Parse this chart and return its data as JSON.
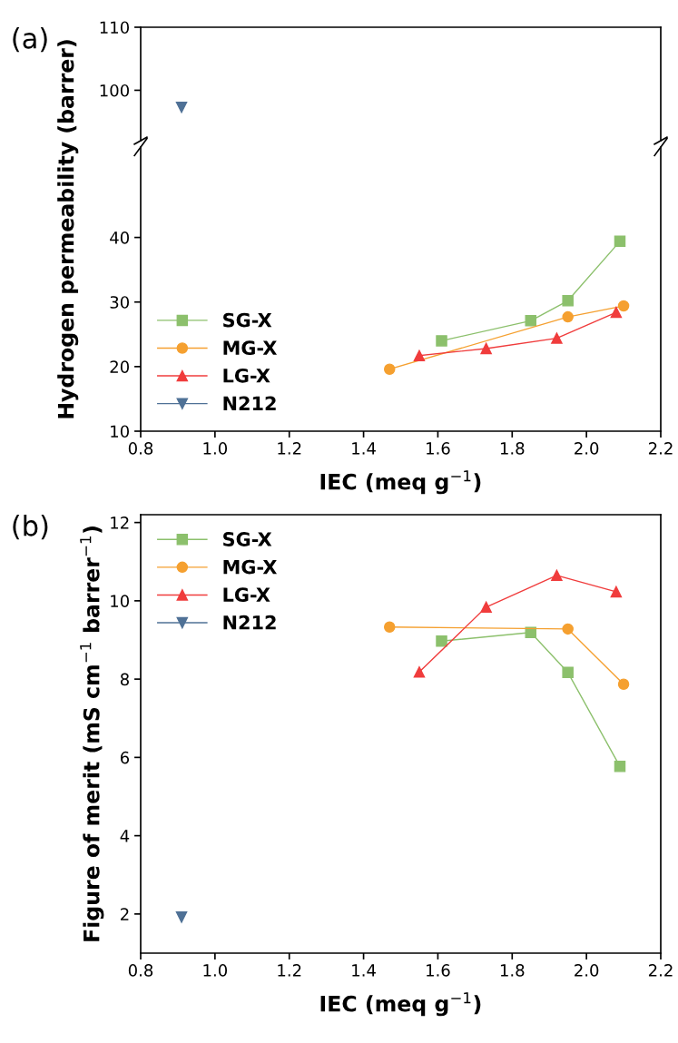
{
  "chart_data": [
    {
      "type": "line",
      "annotations": [
        "(a)"
      ],
      "xlim": [
        0.8,
        2.2
      ],
      "ylim": [
        92,
        110
      ],
      "yticks": [
        100,
        110
      ],
      "tick_labels": "y",
      "grid": false,
      "legend": false,
      "series": [
        {
          "color": "#4f7196",
          "marker": "triangle_down",
          "x": [
            0.91
          ],
          "values": [
            97.3
          ]
        }
      ]
    },
    {
      "type": "line",
      "xlabel": "IEC (meq g$^{−1}$)",
      "ylabel": "Hydrogen permeability (barrer)",
      "xlim": [
        0.8,
        2.2
      ],
      "xticks": [
        {
          "value": 0.8,
          "label": "0.8"
        },
        {
          "value": 1.0,
          "label": "1.0"
        },
        {
          "value": 1.2,
          "label": "1.2"
        },
        {
          "value": 1.4,
          "label": "1.4"
        },
        {
          "value": 1.6,
          "label": "1.6"
        },
        {
          "value": 1.8,
          "label": "1.8"
        },
        {
          "value": 2.0,
          "label": "2.0"
        },
        {
          "value": 2.2,
          "label": "2.2"
        }
      ],
      "ylim": [
        10,
        54
      ],
      "yticks": [
        10,
        20,
        30,
        40
      ],
      "grid": false,
      "legend": "bottom left",
      "series": [
        {
          "name": "SG-X",
          "color": "#8cc06c",
          "marker": "square",
          "x": [
            1.61,
            1.85,
            1.95,
            2.09
          ],
          "values": [
            24.0,
            27.1,
            30.2,
            39.4
          ]
        },
        {
          "name": "MG-X",
          "color": "#f5a030",
          "marker": "circle",
          "x": [
            1.47,
            1.95,
            2.1
          ],
          "values": [
            19.6,
            27.7,
            29.4
          ]
        },
        {
          "name": "LG-X",
          "color": "#f03c3c",
          "marker": "triangle",
          "x": [
            1.55,
            1.73,
            1.92,
            2.08
          ],
          "values": [
            21.7,
            22.8,
            24.4,
            28.4
          ]
        },
        {
          "name": "N212",
          "color": "#4f7196",
          "marker": "triangle_down"
        }
      ]
    },
    {
      "type": "line",
      "annotations": [
        "(b)"
      ],
      "xlabel": "IEC (meq g$^{−1}$)",
      "ylabel": "Figure of merit (mS cm$^{−1}$ barrer$^{−1}$)",
      "xlim": [
        0.8,
        2.2
      ],
      "xticks": [
        {
          "value": 0.8,
          "label": "0.8"
        },
        {
          "value": 1.0,
          "label": "1.0"
        },
        {
          "value": 1.2,
          "label": "1.2"
        },
        {
          "value": 1.4,
          "label": "1.4"
        },
        {
          "value": 1.6,
          "label": "1.6"
        },
        {
          "value": 1.8,
          "label": "1.8"
        },
        {
          "value": 2.0,
          "label": "2.0"
        },
        {
          "value": 2.2,
          "label": "2.2"
        }
      ],
      "ylim": [
        1,
        12.2
      ],
      "yticks": [
        2,
        4,
        6,
        8,
        10,
        12
      ],
      "grid": false,
      "legend": "top left",
      "series": [
        {
          "name": "SG-X",
          "color": "#8cc06c",
          "marker": "square",
          "x": [
            1.61,
            1.85,
            1.95,
            2.09
          ],
          "values": [
            8.97,
            9.19,
            8.17,
            5.77
          ]
        },
        {
          "name": "MG-X",
          "color": "#f5a030",
          "marker": "circle",
          "x": [
            1.47,
            1.95,
            2.1
          ],
          "values": [
            9.33,
            9.28,
            7.87
          ]
        },
        {
          "name": "LG-X",
          "color": "#f03c3c",
          "marker": "triangle",
          "x": [
            1.55,
            1.73,
            1.92,
            2.08
          ],
          "values": [
            8.18,
            9.84,
            10.65,
            10.23
          ]
        },
        {
          "name": "N212",
          "color": "#4f7196",
          "marker": "triangle_down",
          "x": [
            0.91
          ],
          "values": [
            1.92
          ]
        }
      ]
    }
  ]
}
